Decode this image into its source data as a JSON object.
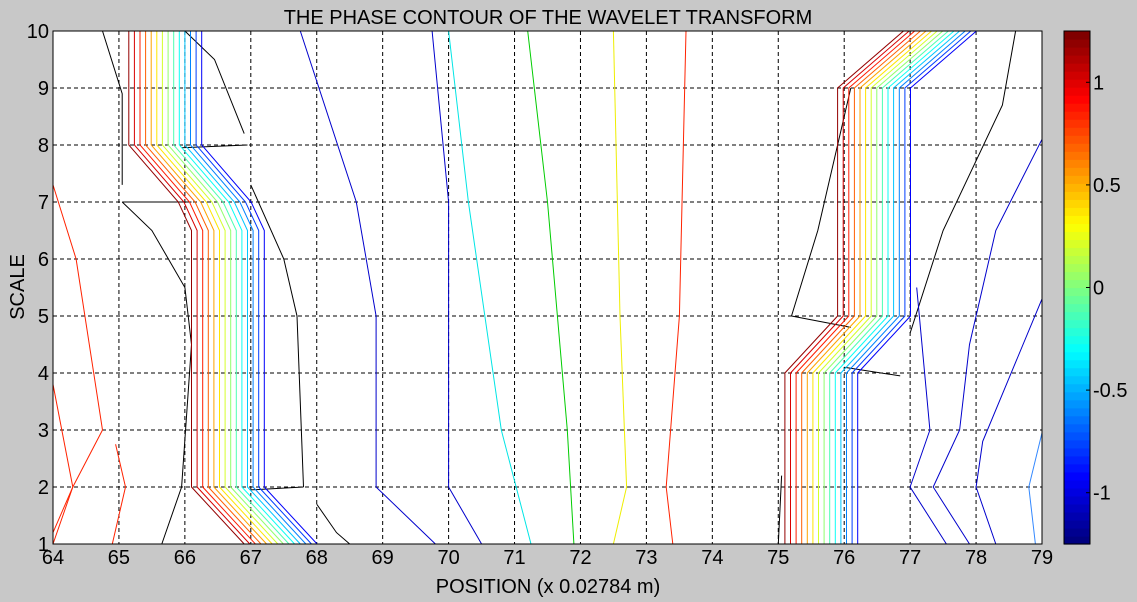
{
  "chart_data": {
    "type": "contour",
    "title": "THE PHASE CONTOUR OF THE WAVELET TRANSFORM",
    "xlabel": "POSITION (x 0.02784 m)",
    "ylabel": "SCALE",
    "xlim": [
      64,
      79
    ],
    "ylim": [
      1,
      10
    ],
    "x_ticks": [
      64,
      65,
      66,
      67,
      68,
      69,
      70,
      71,
      72,
      73,
      74,
      75,
      76,
      77,
      78,
      79
    ],
    "y_ticks": [
      1,
      2,
      3,
      4,
      5,
      6,
      7,
      8,
      9,
      10
    ],
    "grid": true,
    "grid_style": "dashed",
    "background": "#ffffff",
    "figure_background": "#c8c8c8",
    "colorbar": {
      "colormap": "jet",
      "range": [
        -1.25,
        1.25
      ],
      "ticks": [
        -1,
        -0.5,
        0,
        0.5,
        1
      ],
      "tick_labels": [
        "-1",
        "-0.5",
        "0",
        "0.5",
        "1"
      ],
      "position": "right"
    },
    "contour_lines": [
      {
        "level": 0.78,
        "color": "#ff2200",
        "points": [
          [
            64.0,
            7.3
          ],
          [
            64.35,
            6.0
          ],
          [
            64.75,
            3.0
          ],
          [
            64.3,
            2.0
          ],
          [
            64.0,
            1.2
          ]
        ]
      },
      {
        "level": 0.78,
        "color": "#ff2200",
        "points": [
          [
            64.0,
            3.8
          ],
          [
            64.3,
            2.0
          ],
          [
            64.0,
            1.0
          ]
        ]
      },
      {
        "level": 0.78,
        "color": "#ff2200",
        "points": [
          [
            64.95,
            2.75
          ],
          [
            65.1,
            2.0
          ],
          [
            64.9,
            1.0
          ]
        ]
      },
      {
        "level": 1.2,
        "color": "#000000",
        "points": [
          [
            64.75,
            10.0
          ],
          [
            65.05,
            8.9
          ],
          [
            65.05,
            7.3
          ]
        ]
      },
      {
        "level": 1.2,
        "color": "#000000",
        "points": [
          [
            65.05,
            7.0
          ],
          [
            65.5,
            6.5
          ],
          [
            66.0,
            5.5
          ],
          [
            66.1,
            4.5
          ],
          [
            65.95,
            2.0
          ],
          [
            65.65,
            1.0
          ]
        ]
      },
      {
        "level": 1.2,
        "color": "#000000",
        "points": [
          [
            65.05,
            7.0
          ],
          [
            66.1,
            7.0
          ]
        ]
      },
      {
        "level": 1.2,
        "color": "#000000",
        "points": [
          [
            66.0,
            10.0
          ],
          [
            66.45,
            9.5
          ],
          [
            66.9,
            8.2
          ]
        ]
      },
      {
        "level": 1.2,
        "color": "#000000",
        "points": [
          [
            65.95,
            7.95
          ],
          [
            66.95,
            8.0
          ]
        ]
      },
      {
        "level": 1.2,
        "color": "#000000",
        "points": [
          [
            67.0,
            7.3
          ],
          [
            67.5,
            6.0
          ],
          [
            67.7,
            5.0
          ],
          [
            67.8,
            2.0
          ]
        ]
      },
      {
        "level": 1.2,
        "color": "#000000",
        "points": [
          [
            67.0,
            1.95
          ],
          [
            67.8,
            2.0
          ]
        ]
      },
      {
        "level": 1.2,
        "color": "#000000",
        "points": [
          [
            68.0,
            1.7
          ],
          [
            68.3,
            1.2
          ],
          [
            68.5,
            1.0
          ]
        ]
      },
      {
        "level": 1.2,
        "color": "#000000",
        "points": [
          [
            75.05,
            2.2
          ],
          [
            75.0,
            1.0
          ]
        ]
      },
      {
        "level": 1.2,
        "color": "#000000",
        "points": [
          [
            75.2,
            5.0
          ],
          [
            75.6,
            6.5
          ],
          [
            76.0,
            8.5
          ],
          [
            76.1,
            9.0
          ]
        ]
      },
      {
        "level": 1.2,
        "color": "#000000",
        "points": [
          [
            75.2,
            5.0
          ],
          [
            76.1,
            4.8
          ]
        ]
      },
      {
        "level": 1.2,
        "color": "#000000",
        "points": [
          [
            76.0,
            4.1
          ],
          [
            76.85,
            3.95
          ]
        ]
      },
      {
        "level": 1.2,
        "color": "#000000",
        "points": [
          [
            77.0,
            4.7
          ],
          [
            77.5,
            6.5
          ],
          [
            78.4,
            8.7
          ],
          [
            78.6,
            10.0
          ]
        ]
      },
      {
        "level": -0.95,
        "color": "#0000cc",
        "points": [
          [
            67.75,
            10.0
          ],
          [
            68.6,
            7.0
          ],
          [
            68.9,
            5.0
          ],
          [
            68.9,
            2.0
          ],
          [
            69.8,
            1.0
          ]
        ]
      },
      {
        "level": -0.95,
        "color": "#0000cc",
        "points": [
          [
            69.75,
            10.0
          ],
          [
            70.0,
            7.0
          ],
          [
            70.0,
            4.0
          ],
          [
            70.0,
            2.0
          ],
          [
            70.5,
            1.0
          ]
        ]
      },
      {
        "level": -0.95,
        "color": "#0000cc",
        "points": [
          [
            77.1,
            5.5
          ],
          [
            77.3,
            3.0
          ],
          [
            77.0,
            2.0
          ],
          [
            77.55,
            1.0
          ]
        ]
      },
      {
        "level": -0.95,
        "color": "#0000cc",
        "points": [
          [
            79.0,
            8.1
          ],
          [
            78.3,
            6.5
          ],
          [
            77.9,
            4.5
          ],
          [
            77.75,
            3.0
          ],
          [
            77.35,
            2.0
          ],
          [
            77.9,
            1.0
          ]
        ]
      },
      {
        "level": -0.95,
        "color": "#0000cc",
        "points": [
          [
            79.0,
            5.3
          ],
          [
            78.1,
            2.8
          ],
          [
            78.0,
            2.0
          ],
          [
            78.3,
            1.0
          ]
        ]
      },
      {
        "level": -0.7,
        "color": "#3388ff",
        "points": [
          [
            79.0,
            2.95
          ],
          [
            78.8,
            2.0
          ],
          [
            78.9,
            1.0
          ]
        ]
      },
      {
        "level": -0.35,
        "color": "#00e5e5",
        "points": [
          [
            70.0,
            10.0
          ],
          [
            70.3,
            7.0
          ],
          [
            70.8,
            3.0
          ],
          [
            71.25,
            1.0
          ]
        ]
      },
      {
        "level": 0.0,
        "color": "#00cc00",
        "points": [
          [
            71.2,
            10.0
          ],
          [
            71.5,
            7.0
          ],
          [
            71.8,
            3.0
          ],
          [
            71.9,
            1.0
          ]
        ]
      },
      {
        "level": 0.4,
        "color": "#eeee00",
        "points": [
          [
            72.5,
            10.0
          ],
          [
            72.6,
            5.0
          ],
          [
            72.7,
            2.0
          ],
          [
            72.5,
            1.0
          ]
        ]
      },
      {
        "level": 0.78,
        "color": "#ff2200",
        "points": [
          [
            73.6,
            10.0
          ],
          [
            73.5,
            5.0
          ],
          [
            73.3,
            2.0
          ],
          [
            73.4,
            1.0
          ]
        ]
      }
    ],
    "contour_bands": [
      {
        "levels_from": 1.2,
        "levels_to": -0.95,
        "path": [
          [
            65.15,
            10.0
          ],
          [
            65.15,
            8.0
          ],
          [
            65.9,
            7.0
          ],
          [
            66.1,
            6.5
          ],
          [
            66.1,
            2.0
          ],
          [
            66.9,
            1.0
          ]
        ]
      },
      {
        "levels_from": 1.2,
        "levels_to": -0.95,
        "path": [
          [
            75.1,
            1.0
          ],
          [
            75.1,
            4.0
          ],
          [
            75.9,
            5.0
          ],
          [
            75.9,
            9.0
          ],
          [
            76.9,
            10.0
          ]
        ]
      }
    ]
  }
}
